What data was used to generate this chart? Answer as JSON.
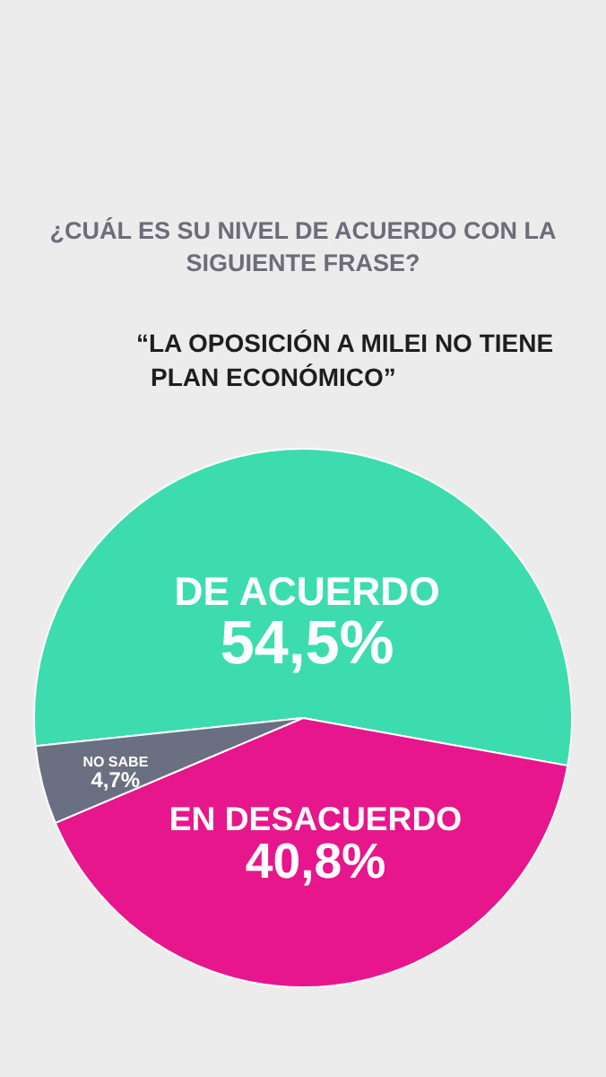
{
  "chart_data": {
    "type": "pie",
    "title": "¿CUÁL ES SU NIVEL DE ACUERDO CON LA SIGUIENTE FRASE?",
    "subtitle": "“LA OPOSICIÓN A MILEI NO TIENE PLAN ECONÓMICO”",
    "categories": [
      "DE ACUERDO",
      "EN DESACUERDO",
      "NO SABE"
    ],
    "values": [
      54.5,
      40.8,
      4.7
    ],
    "value_labels": [
      "54,5%",
      "40,8%",
      "4,7%"
    ],
    "colors": [
      "#3ddcae",
      "#e8168c",
      "#6b6f82"
    ]
  }
}
